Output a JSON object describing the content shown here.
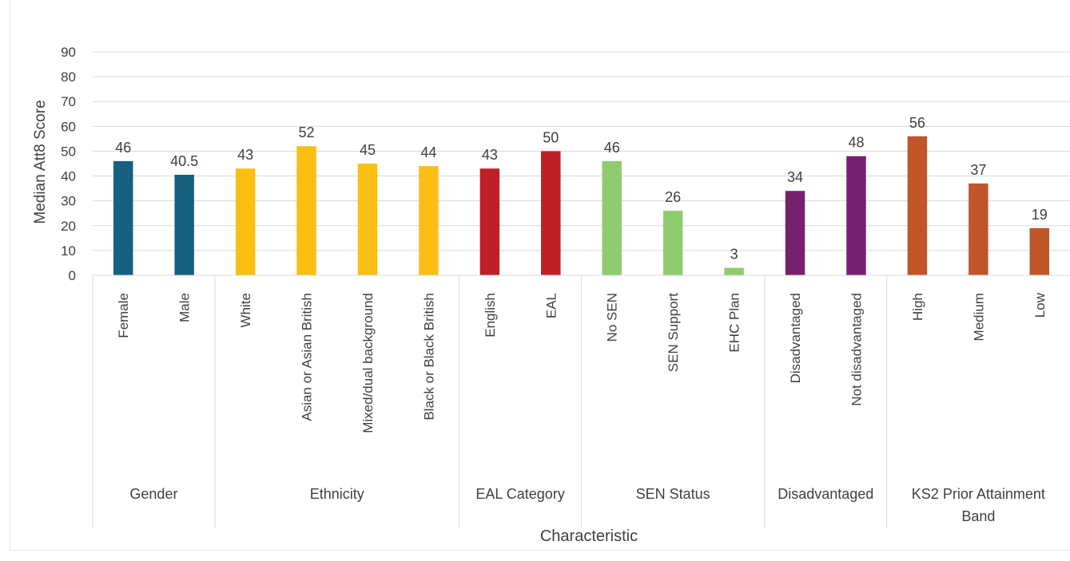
{
  "chart_data": {
    "type": "bar",
    "title": "",
    "xlabel": "Characteristic",
    "ylabel": "Median Att8 Score",
    "ylim": [
      0,
      90
    ],
    "yticks": [
      0,
      10,
      20,
      30,
      40,
      50,
      60,
      70,
      80,
      90
    ],
    "grid": true,
    "legend": "none",
    "groups": [
      {
        "name": "Gender",
        "name_lines": [
          "Gender"
        ],
        "color": "#17607f",
        "bars": [
          {
            "category": "Female",
            "value": 46,
            "label": "46"
          },
          {
            "category": "Male",
            "value": 40.5,
            "label": "40.5"
          }
        ]
      },
      {
        "name": "Ethnicity",
        "name_lines": [
          "Ethnicity"
        ],
        "color": "#fbbf14",
        "bars": [
          {
            "category": "White",
            "value": 43,
            "label": "43"
          },
          {
            "category": "Asian or Asian British",
            "value": 52,
            "label": "52"
          },
          {
            "category": "Mixed/dual background",
            "value": 45,
            "label": "45"
          },
          {
            "category": "Black or Black British",
            "value": 44,
            "label": "44"
          }
        ]
      },
      {
        "name": "EAL Category",
        "name_lines": [
          "EAL Category"
        ],
        "color": "#c01f27",
        "bars": [
          {
            "category": "English",
            "value": 43,
            "label": "43"
          },
          {
            "category": "EAL",
            "value": 50,
            "label": "50"
          }
        ]
      },
      {
        "name": "SEN Status",
        "name_lines": [
          "SEN Status"
        ],
        "color": "#8fcb6f",
        "bars": [
          {
            "category": "No SEN",
            "value": 46,
            "label": "46"
          },
          {
            "category": "SEN Support",
            "value": 26,
            "label": "26"
          },
          {
            "category": "EHC Plan",
            "value": 3,
            "label": "3"
          }
        ]
      },
      {
        "name": "Disadvantaged",
        "name_lines": [
          "Disadvantaged"
        ],
        "color": "#76216f",
        "bars": [
          {
            "category": "Disadvantaged",
            "value": 34,
            "label": "34"
          },
          {
            "category": "Not disadvantaged",
            "value": 48,
            "label": "48"
          }
        ]
      },
      {
        "name": "KS2 Prior Attainment Band",
        "name_lines": [
          "KS2 Prior Attainment",
          "Band"
        ],
        "color": "#c0562a",
        "bars": [
          {
            "category": "High",
            "value": 56,
            "label": "56"
          },
          {
            "category": "Medium",
            "value": 37,
            "label": "37"
          },
          {
            "category": "Low",
            "value": 19,
            "label": "19"
          }
        ]
      }
    ]
  }
}
